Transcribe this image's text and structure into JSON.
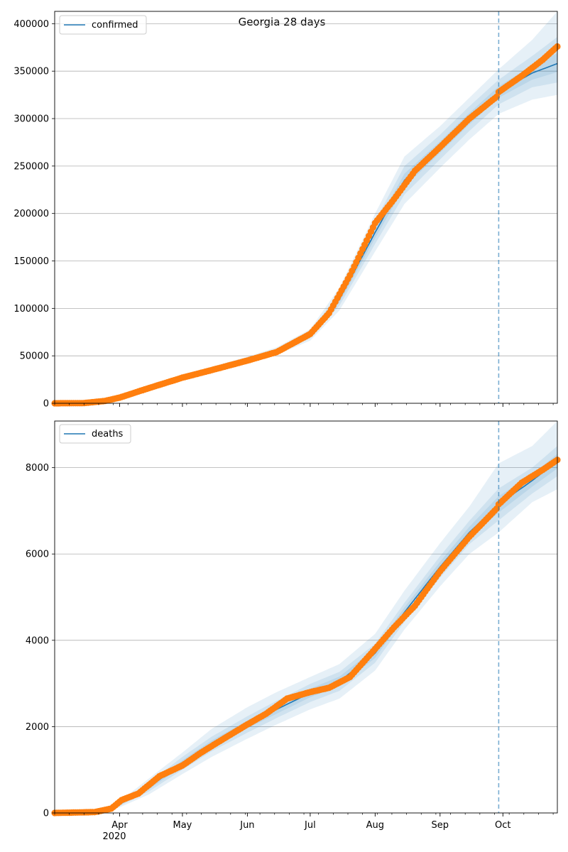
{
  "title": "Georgia 28 days",
  "x_labels": [
    "Apr",
    "May",
    "Jun",
    "Jul",
    "Aug",
    "Sep",
    "Oct"
  ],
  "x_year_label": "2020",
  "colors": {
    "model": "#1f77b4",
    "observed": "#ff7f0e",
    "band": "#1f77b4",
    "grid": "#b0b0b0",
    "forecast_line": "#1f77b4"
  },
  "chart_data": [
    {
      "type": "line",
      "legend": "confirmed",
      "legend_position": "upper-left",
      "grid": "y",
      "x_range": [
        "2020-03-01",
        "2020-10-27"
      ],
      "ylim": [
        0,
        413000
      ],
      "y_ticks": [
        0,
        50000,
        100000,
        150000,
        200000,
        250000,
        300000,
        350000,
        400000
      ],
      "forecast_start": "2020-09-29",
      "model": {
        "dates": [
          "2020-03-01",
          "2020-03-15",
          "2020-04-01",
          "2020-04-15",
          "2020-05-01",
          "2020-05-15",
          "2020-06-01",
          "2020-06-15",
          "2020-07-01",
          "2020-07-15",
          "2020-08-01",
          "2020-08-15",
          "2020-09-01",
          "2020-09-15",
          "2020-09-29",
          "2020-10-15",
          "2020-10-27"
        ],
        "values": [
          0,
          300,
          8000,
          18000,
          28000,
          36000,
          46000,
          55000,
          72000,
          110000,
          180000,
          235000,
          270000,
          300000,
          328000,
          348000,
          358000
        ]
      },
      "bands": [
        {
          "lower": [
            0,
            200,
            7000,
            16500,
            26000,
            33500,
            43000,
            51000,
            66000,
            98000,
            160000,
            210000,
            248000,
            278000,
            305000,
            320000,
            325000
          ],
          "upper": [
            0,
            400,
            9000,
            19500,
            30000,
            38500,
            49000,
            59000,
            78000,
            122000,
            200000,
            260000,
            292000,
            322000,
            352000,
            383000,
            413000
          ]
        },
        {
          "lower": [
            0,
            240,
            7400,
            17000,
            26800,
            34500,
            44200,
            52500,
            68500,
            103000,
            168000,
            220000,
            257000,
            287000,
            315000,
            333000,
            338000
          ],
          "upper": [
            0,
            360,
            8600,
            19000,
            29200,
            37500,
            47800,
            57500,
            75500,
            117000,
            192000,
            250000,
            283000,
            313000,
            341000,
            366000,
            386000
          ]
        },
        {
          "lower": [
            0,
            270,
            7700,
            17500,
            27400,
            35200,
            45100,
            53800,
            70300,
            106500,
            174000,
            228000,
            264000,
            294000,
            322000,
            341000,
            349000
          ],
          "upper": [
            0,
            330,
            8300,
            18500,
            28600,
            36800,
            46900,
            56200,
            73700,
            113500,
            186000,
            242000,
            276000,
            306000,
            334000,
            356000,
            369000
          ]
        }
      ],
      "observed": {
        "dates": [
          "2020-03-01",
          "2020-03-15",
          "2020-03-25",
          "2020-04-01",
          "2020-04-15",
          "2020-05-01",
          "2020-05-15",
          "2020-06-01",
          "2020-06-15",
          "2020-07-01",
          "2020-07-10",
          "2020-07-20",
          "2020-08-01",
          "2020-08-10",
          "2020-08-20",
          "2020-09-01",
          "2020-09-15",
          "2020-09-28",
          "2020-09-29",
          "2020-10-10",
          "2020-10-20",
          "2020-10-27"
        ],
        "values": [
          0,
          200,
          2500,
          6000,
          16000,
          27000,
          35000,
          45000,
          54000,
          73000,
          95000,
          135000,
          190000,
          215000,
          245000,
          270000,
          300000,
          323000,
          328000,
          345000,
          362000,
          376000
        ]
      }
    },
    {
      "type": "line",
      "legend": "deaths",
      "legend_position": "upper-left",
      "grid": "y",
      "x_range": [
        "2020-03-01",
        "2020-10-27"
      ],
      "ylim": [
        0,
        9080
      ],
      "y_ticks": [
        0,
        2000,
        4000,
        6000,
        8000
      ],
      "forecast_start": "2020-09-29",
      "model": {
        "dates": [
          "2020-03-01",
          "2020-03-20",
          "2020-04-01",
          "2020-04-15",
          "2020-05-01",
          "2020-05-15",
          "2020-06-01",
          "2020-06-15",
          "2020-07-01",
          "2020-07-15",
          "2020-08-01",
          "2020-08-15",
          "2020-09-01",
          "2020-09-15",
          "2020-09-29",
          "2020-10-15",
          "2020-10-27"
        ],
        "values": [
          0,
          30,
          200,
          600,
          1150,
          1600,
          2050,
          2400,
          2780,
          3050,
          3700,
          4650,
          5700,
          6500,
          7150,
          7700,
          8150
        ]
      },
      "bands": [
        {
          "lower": [
            0,
            20,
            130,
            430,
            900,
            1300,
            1720,
            2050,
            2400,
            2650,
            3300,
            4250,
            5250,
            6000,
            6500,
            7200,
            7500
          ],
          "upper": [
            0,
            40,
            270,
            800,
            1400,
            1950,
            2450,
            2800,
            3150,
            3450,
            4150,
            5150,
            6250,
            7100,
            8100,
            8500,
            9080
          ]
        },
        {
          "lower": [
            0,
            24,
            160,
            500,
            1000,
            1430,
            1860,
            2200,
            2570,
            2830,
            3480,
            4430,
            5450,
            6230,
            6780,
            7400,
            7800
          ],
          "upper": [
            0,
            36,
            240,
            700,
            1300,
            1770,
            2240,
            2600,
            2990,
            3270,
            3920,
            4870,
            5950,
            6770,
            7520,
            8000,
            8500
          ]
        },
        {
          "lower": [
            0,
            27,
            180,
            550,
            1080,
            1520,
            1960,
            2300,
            2680,
            2940,
            3590,
            4540,
            5580,
            6370,
            6960,
            7560,
            7980
          ],
          "upper": [
            0,
            33,
            220,
            650,
            1220,
            1680,
            2140,
            2500,
            2880,
            3160,
            3810,
            4760,
            5820,
            6630,
            7340,
            7840,
            8320
          ]
        }
      ],
      "observed": {
        "dates": [
          "2020-03-01",
          "2020-03-20",
          "2020-03-28",
          "2020-04-02",
          "2020-04-10",
          "2020-04-20",
          "2020-05-01",
          "2020-05-10",
          "2020-05-20",
          "2020-06-01",
          "2020-06-10",
          "2020-06-20",
          "2020-07-01",
          "2020-07-10",
          "2020-07-20",
          "2020-08-01",
          "2020-08-10",
          "2020-08-20",
          "2020-09-01",
          "2020-09-15",
          "2020-09-28",
          "2020-09-29",
          "2020-10-10",
          "2020-10-20",
          "2020-10-27"
        ],
        "values": [
          0,
          20,
          100,
          300,
          450,
          850,
          1100,
          1400,
          1700,
          2050,
          2300,
          2650,
          2800,
          2900,
          3150,
          3800,
          4300,
          4800,
          5600,
          6400,
          7050,
          7150,
          7650,
          7950,
          8180
        ]
      }
    }
  ]
}
